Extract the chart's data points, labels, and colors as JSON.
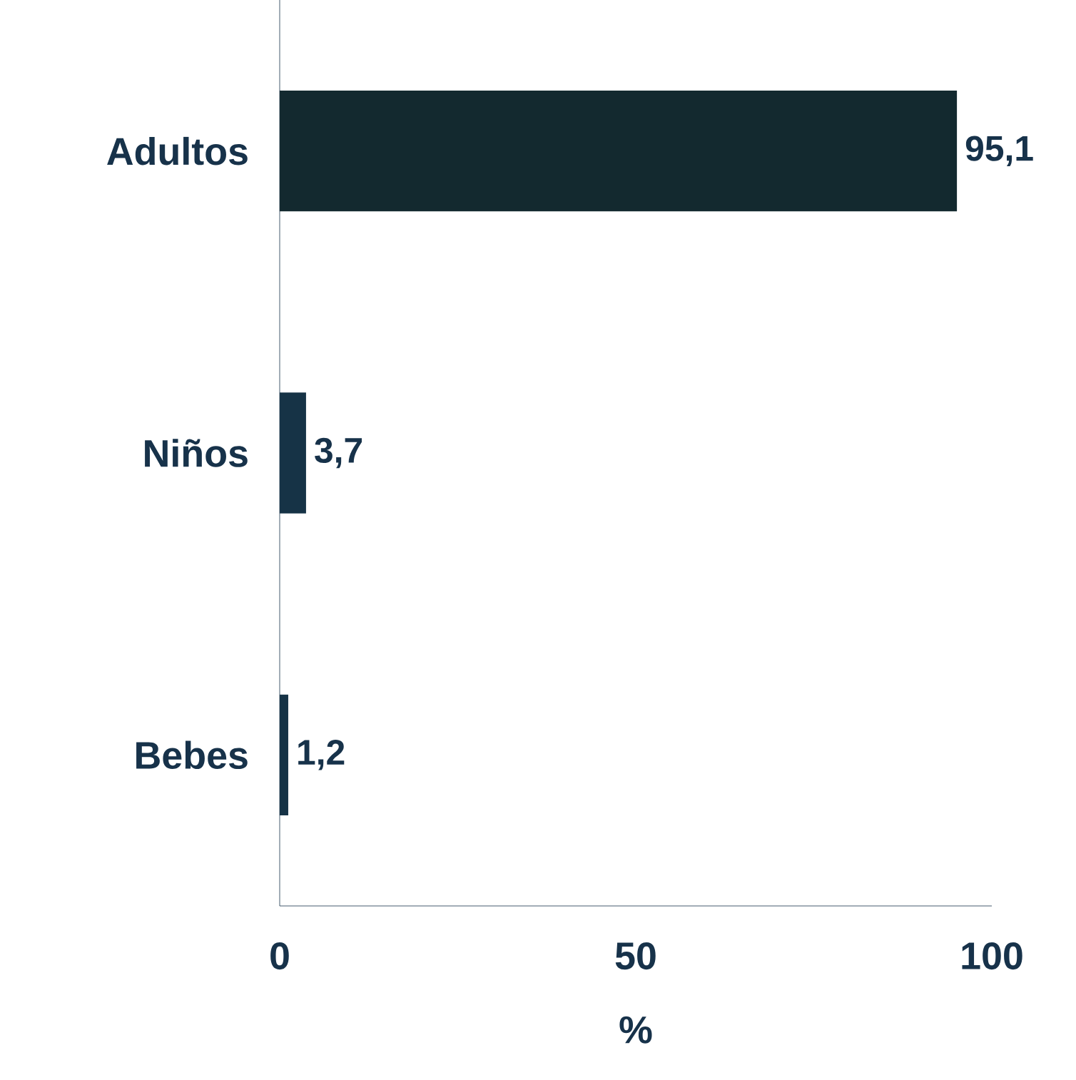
{
  "chart_data": {
    "type": "bar",
    "orientation": "horizontal",
    "xlabel": "%",
    "categories": [
      "Adultos",
      "Niños",
      "Bebes"
    ],
    "values": [
      95.1,
      3.7,
      1.2
    ],
    "value_labels": [
      "95,1",
      "3,7",
      "1,2"
    ],
    "colors": [
      "#13292f",
      "#163346",
      "#163346"
    ],
    "xlim": [
      0,
      100
    ],
    "xticks": [
      0,
      50,
      100
    ],
    "grid": false
  }
}
